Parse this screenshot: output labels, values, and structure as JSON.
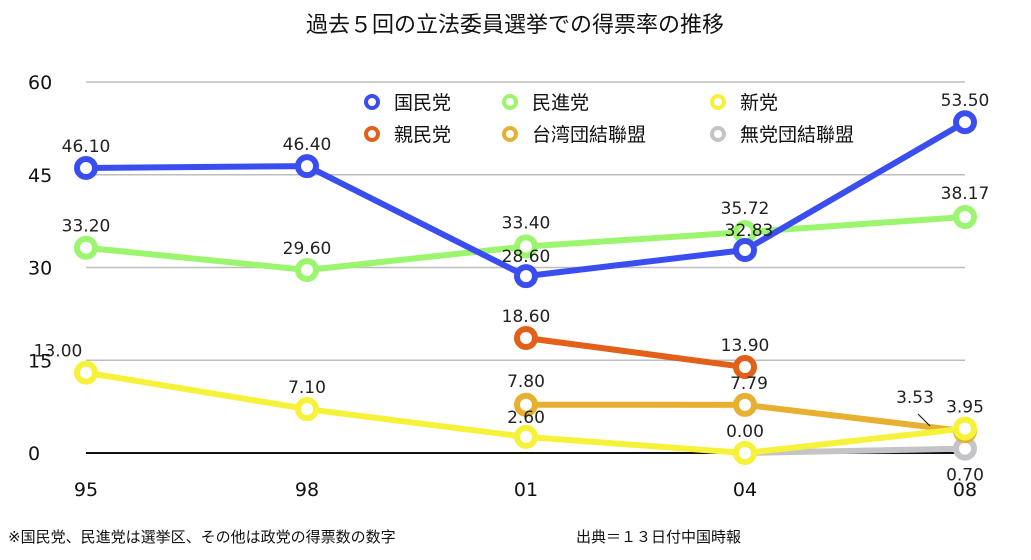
{
  "chart_data": {
    "type": "line",
    "title": "過去５回の立法委員選挙での得票率の推移",
    "categories": [
      "95",
      "98",
      "01",
      "04",
      "08"
    ],
    "y_ticks": [
      "60",
      "45",
      "30",
      "15",
      "0"
    ],
    "ylim": [
      0,
      60
    ],
    "grid": true,
    "legend_placement": "top-right",
    "series": [
      {
        "name": "国民党",
        "color": "#3a4ef0",
        "values": [
          46.1,
          46.4,
          28.6,
          32.83,
          53.5
        ],
        "labels": [
          "46.10",
          "46.40",
          "28.60",
          "32.83",
          "53.50"
        ]
      },
      {
        "name": "民進党",
        "color": "#9cf56e",
        "values": [
          33.2,
          29.6,
          33.4,
          35.72,
          38.17
        ],
        "labels": [
          "33.20",
          "29.60",
          "33.40",
          "35.72",
          "38.17"
        ]
      },
      {
        "name": "新党",
        "color": "#f6f23a",
        "values": [
          13.0,
          7.1,
          2.6,
          0.0,
          3.95
        ],
        "labels": [
          "13.00",
          "7.10",
          "2.60",
          "0.00",
          "3.95"
        ]
      },
      {
        "name": "親民党",
        "color": "#e2601a",
        "values": [
          null,
          null,
          18.6,
          13.9,
          null
        ],
        "labels": [
          null,
          null,
          "18.60",
          "13.90",
          null
        ]
      },
      {
        "name": "台湾団結聯盟",
        "color": "#e8b030",
        "values": [
          null,
          null,
          7.8,
          7.79,
          3.53
        ],
        "labels": [
          null,
          null,
          "7.80",
          "7.79",
          "3.53"
        ]
      },
      {
        "name": "無党団結聯盟",
        "color": "#c4c4c8",
        "values": [
          null,
          null,
          null,
          0.0,
          0.7
        ],
        "labels": [
          null,
          null,
          null,
          null,
          "0.70"
        ]
      }
    ],
    "footnote": "※国民党、民進党は選挙区、その他は政党の得票数の数字",
    "source": "出典＝１３日付中国時報"
  }
}
